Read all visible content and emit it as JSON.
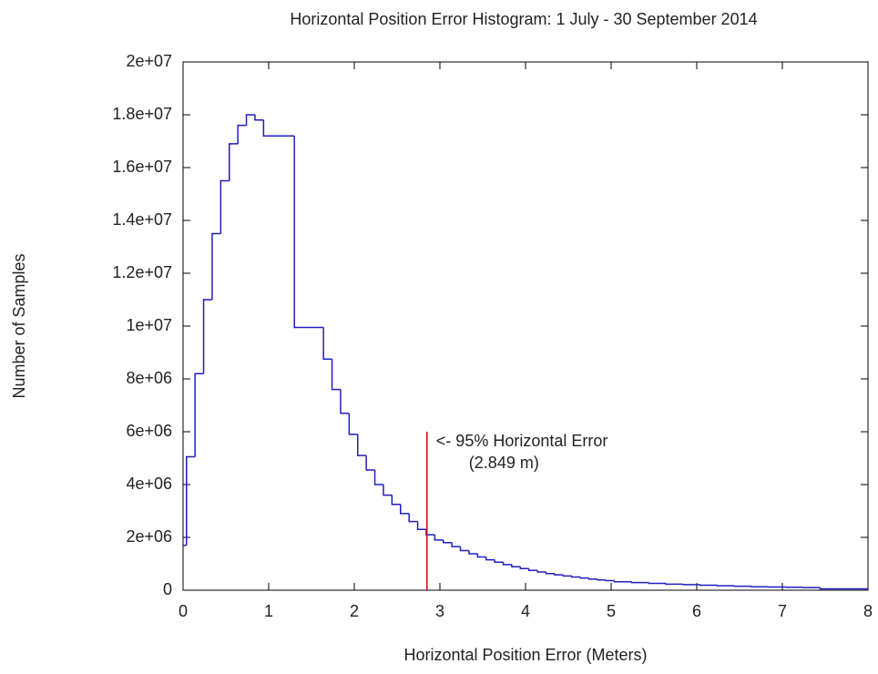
{
  "chart_data": {
    "type": "histogram",
    "title": "Horizontal Position Error Histogram: 1 July - 30 September 2014",
    "x_label": "Horizontal Position Error (Meters)",
    "y_label": "Number of Samples",
    "bins": [
      0,
      0.04,
      0.14,
      0.24,
      0.34,
      0.44,
      0.54,
      0.64,
      0.74,
      0.84,
      0.94,
      1.3,
      1.64,
      1.74,
      1.84,
      1.94,
      2.04,
      2.14,
      2.24,
      2.34,
      2.44,
      2.54,
      2.64,
      2.74,
      2.84,
      2.94,
      3.04,
      3.14,
      3.24,
      3.34,
      3.44,
      3.54,
      3.64,
      3.74,
      3.84,
      3.94,
      4.04,
      4.14,
      4.24,
      4.34,
      4.44,
      4.54,
      4.64,
      4.74,
      4.84,
      4.94,
      5.04,
      5.24,
      5.44,
      5.64,
      5.84,
      6.04,
      6.24,
      6.44,
      6.64,
      6.84,
      7.04,
      7.24,
      7.44,
      8
    ],
    "values": [
      1700000,
      5050000,
      8200000,
      11000000,
      13500000,
      15500000,
      16900000,
      17600000,
      18000000,
      17800000,
      17200000,
      9950000,
      8750000,
      7600000,
      6700000,
      5900000,
      5100000,
      4550000,
      4000000,
      3600000,
      3250000,
      2900000,
      2600000,
      2300000,
      2100000,
      1900000,
      1800000,
      1650000,
      1500000,
      1380000,
      1260000,
      1150000,
      1060000,
      970000,
      890000,
      820000,
      750000,
      690000,
      630000,
      580000,
      540000,
      500000,
      460000,
      420000,
      390000,
      360000,
      320000,
      290000,
      260000,
      230000,
      210000,
      190000,
      170000,
      150000,
      130000,
      120000,
      110000,
      100000,
      50000
    ],
    "color": "#1f1fc0",
    "xlim": [
      0,
      8
    ],
    "xticks": [
      0,
      1,
      2,
      3,
      4,
      5,
      6,
      7,
      8
    ],
    "ylim": [
      0,
      20000000
    ],
    "yticks": [
      0,
      {
        "value": 2000000,
        "label": "2e+06"
      },
      {
        "value": 4000000,
        "label": "4e+06"
      },
      {
        "value": 6000000,
        "label": "6e+06"
      },
      {
        "value": 8000000,
        "label": "8e+06"
      },
      {
        "value": 10000000,
        "label": "1e+07"
      },
      {
        "value": 12000000,
        "label": "1.2e+07"
      },
      {
        "value": 14000000,
        "label": "1.4e+07"
      },
      {
        "value": 16000000,
        "label": "1.6e+07"
      },
      {
        "value": 18000000,
        "label": "1.8e+07"
      },
      {
        "value": 20000000,
        "label": "2e+07"
      }
    ],
    "grid": false,
    "marker": {
      "x": 2.849,
      "height": 6000000,
      "color": "#e00000"
    },
    "annotations": [
      "<- 95% Horizontal Error",
      "(2.849 m)"
    ]
  }
}
